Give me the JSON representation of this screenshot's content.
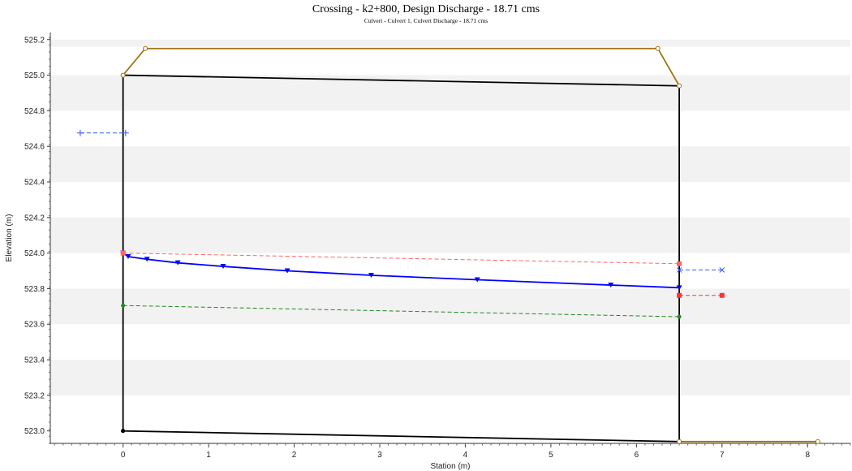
{
  "chart_data": {
    "type": "line",
    "title": "Crossing - k2+800, Design Discharge - 18.71 cms",
    "subtitle": "Culvert - Culvert 1, Culvert Discharge - 18.71 cms",
    "xlabel": "Station (m)",
    "ylabel": "Elevation (m)",
    "xlim": [
      -0.85,
      8.5
    ],
    "ylim": [
      522.93,
      525.24
    ],
    "x_ticks": [
      0,
      1,
      2,
      3,
      4,
      5,
      6,
      7,
      8
    ],
    "y_ticks": [
      523.0,
      523.2,
      523.4,
      523.6,
      523.8,
      524.0,
      524.2,
      524.4,
      524.6,
      524.8,
      525.0,
      525.2
    ],
    "grid": "horizontal bands",
    "series": [
      {
        "color": "#000000",
        "style": "solid",
        "marker": "circle",
        "points": [
          [
            0,
            523.0
          ],
          [
            0,
            525.0
          ],
          [
            6.5,
            524.94
          ],
          [
            6.5,
            522.94
          ],
          [
            0,
            523.0
          ]
        ]
      },
      {
        "color": "#a0720f",
        "style": "solid",
        "marker": "circle-open",
        "points": [
          [
            0,
            525.0
          ],
          [
            0.26,
            525.15
          ],
          [
            6.25,
            525.15
          ],
          [
            6.5,
            524.94
          ]
        ]
      },
      {
        "color": "#a0720f",
        "style": "solid",
        "marker": "circle-open",
        "points": [
          [
            6.5,
            522.94
          ],
          [
            8.12,
            522.94
          ]
        ]
      },
      {
        "color": "#0000ff",
        "style": "solid",
        "marker": "triangle-down",
        "points": [
          [
            0,
            524.0
          ],
          [
            0.06,
            523.98
          ],
          [
            0.28,
            523.965
          ],
          [
            0.64,
            523.945
          ],
          [
            1.17,
            523.925
          ],
          [
            1.92,
            523.9
          ],
          [
            2.9,
            523.875
          ],
          [
            4.14,
            523.85
          ],
          [
            5.7,
            523.82
          ],
          [
            6.5,
            523.805
          ]
        ]
      },
      {
        "color": "#ff6666",
        "style": "dashed",
        "marker": "square",
        "points": [
          [
            0,
            524.0
          ],
          [
            6.5,
            523.94
          ]
        ]
      },
      {
        "color": "#ff3333",
        "style": "dashed",
        "marker": "square",
        "points": [
          [
            6.5,
            523.762
          ],
          [
            7.0,
            523.762
          ]
        ]
      },
      {
        "color": "#228822",
        "style": "dashed",
        "marker": "circle",
        "points": [
          [
            0,
            523.705
          ],
          [
            6.5,
            523.642
          ]
        ]
      },
      {
        "color": "#3355ff",
        "style": "dashed",
        "marker": "plus",
        "points": [
          [
            -0.5,
            524.675
          ],
          [
            0.03,
            524.675
          ]
        ]
      },
      {
        "color": "#3355ff",
        "style": "dashed",
        "marker": "cross",
        "points": [
          [
            6.5,
            523.905
          ],
          [
            7.0,
            523.905
          ]
        ]
      }
    ]
  }
}
